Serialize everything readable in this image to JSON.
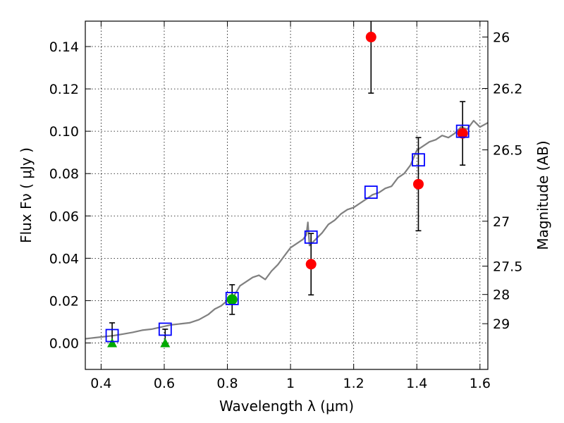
{
  "chart_data": {
    "type": "scatter",
    "xlabel": "Wavelength  λ (μm)",
    "ylabel": "Flux  Fν  ( μJy )",
    "y2label": "Magnitude (AB)",
    "xlim": [
      0.35,
      1.625
    ],
    "ylim": [
      -0.0125,
      0.152
    ],
    "grid": true,
    "xticks": [
      0.4,
      0.6,
      0.8,
      1.0,
      1.2,
      1.4,
      1.6
    ],
    "xtick_labels": [
      "0.4",
      "0.6",
      "0.8",
      "1",
      "1.2",
      "1.4",
      "1.6"
    ],
    "yticks": [
      0.0,
      0.02,
      0.04,
      0.06,
      0.08,
      0.1,
      0.12,
      0.14
    ],
    "ytick_labels": [
      "0.00",
      "0.02",
      "0.04",
      "0.06",
      "0.08",
      "0.10",
      "0.12",
      "0.14"
    ],
    "y2ticks": [
      {
        "mag": "26",
        "flux": 0.1445
      },
      {
        "mag": "26.2",
        "flux": 0.1202
      },
      {
        "mag": "26.5",
        "flux": 0.0912
      },
      {
        "mag": "27",
        "flux": 0.0575
      },
      {
        "mag": "27.5",
        "flux": 0.0363
      },
      {
        "mag": "28",
        "flux": 0.0229
      },
      {
        "mag": "29",
        "flux": 0.0091
      }
    ],
    "colors": {
      "model": "#808080",
      "observed": "#ff0000",
      "upper_limit": "#00aa00",
      "synthetic": "#0000ff",
      "errorbar": "#000000"
    },
    "series": [
      {
        "kind": "model_spectrum",
        "x": [
          0.35,
          0.38,
          0.41,
          0.44,
          0.47,
          0.5,
          0.53,
          0.56,
          0.59,
          0.62,
          0.65,
          0.68,
          0.71,
          0.74,
          0.76,
          0.78,
          0.8,
          0.82,
          0.84,
          0.86,
          0.88,
          0.9,
          0.92,
          0.94,
          0.96,
          0.98,
          1.0,
          1.02,
          1.04,
          1.05,
          1.055,
          1.06,
          1.08,
          1.1,
          1.12,
          1.14,
          1.16,
          1.18,
          1.2,
          1.22,
          1.24,
          1.26,
          1.28,
          1.3,
          1.32,
          1.34,
          1.36,
          1.38,
          1.4,
          1.42,
          1.44,
          1.46,
          1.48,
          1.5,
          1.52,
          1.54,
          1.56,
          1.58,
          1.6,
          1.625
        ],
        "y": [
          0.002,
          0.0025,
          0.003,
          0.0035,
          0.0042,
          0.005,
          0.006,
          0.0065,
          0.0075,
          0.0085,
          0.009,
          0.0095,
          0.011,
          0.0135,
          0.016,
          0.0175,
          0.02,
          0.022,
          0.027,
          0.029,
          0.031,
          0.032,
          0.03,
          0.034,
          0.037,
          0.041,
          0.045,
          0.047,
          0.049,
          0.051,
          0.057,
          0.046,
          0.049,
          0.052,
          0.056,
          0.058,
          0.061,
          0.063,
          0.064,
          0.066,
          0.068,
          0.07,
          0.071,
          0.073,
          0.074,
          0.078,
          0.08,
          0.084,
          0.091,
          0.093,
          0.095,
          0.096,
          0.098,
          0.097,
          0.099,
          0.102,
          0.101,
          0.105,
          0.102,
          0.104
        ]
      },
      {
        "kind": "observed",
        "x": [
          0.815,
          1.065,
          1.255,
          1.405,
          1.545
        ],
        "y": [
          0.0205,
          0.0372,
          0.1445,
          0.075,
          0.099
        ],
        "yerr": [
          0.007,
          0.0145,
          0.0265,
          0.022,
          0.015
        ],
        "colors": [
          "#00aa00",
          "#ff0000",
          "#ff0000",
          "#ff0000",
          "#ff0000"
        ]
      },
      {
        "kind": "upper_limit",
        "x": [
          0.435,
          0.603
        ],
        "y": [
          0.0,
          0.0
        ],
        "yerr_up": [
          0.0095,
          0.0065
        ]
      },
      {
        "kind": "synthetic",
        "x": [
          0.435,
          0.603,
          0.815,
          1.065,
          1.255,
          1.405,
          1.545
        ],
        "y": [
          0.0035,
          0.0065,
          0.021,
          0.05,
          0.0712,
          0.0865,
          0.1
        ]
      }
    ]
  }
}
